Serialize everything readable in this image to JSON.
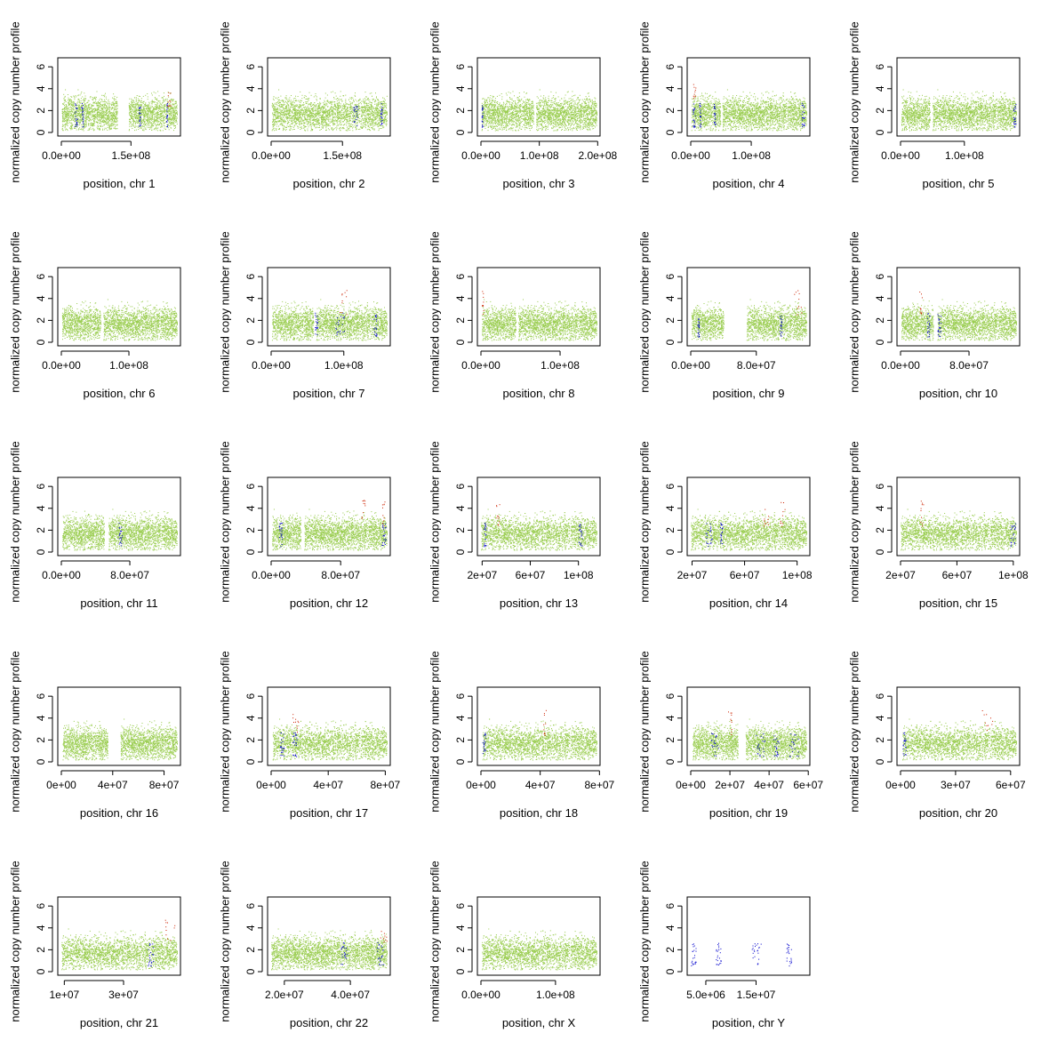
{
  "ylabel": "normalized copy number profile",
  "y_ticks": [
    0,
    2,
    4,
    6
  ],
  "ylim": [
    0,
    6.5
  ],
  "colors": {
    "normal": "#9acd50",
    "loss": "#0000cd",
    "gain": "#cc2200"
  },
  "chart_data": [
    {
      "type": "scatter",
      "chr": "1",
      "xlabel": "position, chr 1",
      "xlim": [
        0,
        249000000
      ],
      "x_ticks": [
        0,
        150000000
      ],
      "x_tick_labels": [
        "0.0e+00",
        "1.5e+08"
      ],
      "segments": [
        [
          1000000,
          120000000
        ],
        [
          145000000,
          249000000
        ]
      ],
      "loss_regions": [
        [
          28000000,
          34000000
        ],
        [
          43000000,
          47000000
        ],
        [
          167000000,
          170000000
        ],
        [
          226000000,
          228000000
        ]
      ],
      "gain_regions": [
        [
          228000000,
          236000000
        ]
      ]
    },
    {
      "type": "scatter",
      "chr": "2",
      "xlabel": "position, chr 2",
      "xlim": [
        0,
        243000000
      ],
      "x_ticks": [
        0,
        150000000
      ],
      "x_tick_labels": [
        "0.0e+00",
        "1.5e+08"
      ],
      "segments": [
        [
          1000000,
          243000000
        ]
      ],
      "loss_regions": [
        [
          172000000,
          182000000
        ],
        [
          230000000,
          233000000
        ]
      ],
      "gain_regions": []
    },
    {
      "type": "scatter",
      "chr": "3",
      "xlabel": "position, chr 3",
      "xlim": [
        0,
        198000000
      ],
      "x_ticks": [
        0,
        100000000,
        200000000
      ],
      "x_tick_labels": [
        "0.0e+00",
        "1.0e+08",
        "2.0e+08"
      ],
      "segments": [
        [
          1000000,
          90000000
        ],
        [
          94000000,
          198000000
        ]
      ],
      "loss_regions": [
        [
          1000000,
          3000000
        ]
      ],
      "gain_regions": []
    },
    {
      "type": "scatter",
      "chr": "4",
      "xlabel": "position, chr 4",
      "xlim": [
        0,
        191000000
      ],
      "x_ticks": [
        0,
        100000000
      ],
      "x_tick_labels": [
        "0.0e+00",
        "1.0e+08"
      ],
      "segments": [
        [
          1000000,
          49000000
        ],
        [
          52000000,
          191000000
        ]
      ],
      "loss_regions": [
        [
          3000000,
          7000000
        ],
        [
          14000000,
          16000000
        ],
        [
          38000000,
          41000000
        ],
        [
          183000000,
          188000000
        ]
      ],
      "gain_regions": [
        [
          3000000,
          8000000
        ]
      ]
    },
    {
      "type": "scatter",
      "chr": "5",
      "xlabel": "position, chr 5",
      "xlim": [
        0,
        181000000
      ],
      "x_ticks": [
        0,
        100000000
      ],
      "x_tick_labels": [
        "0.0e+00",
        "1.0e+08"
      ],
      "segments": [
        [
          1000000,
          46000000
        ],
        [
          50000000,
          181000000
        ]
      ],
      "loss_regions": [
        [
          176000000,
          181000000
        ]
      ],
      "gain_regions": []
    },
    {
      "type": "scatter",
      "chr": "6",
      "xlabel": "position, chr 6",
      "xlim": [
        0,
        171000000
      ],
      "x_ticks": [
        0,
        100000000
      ],
      "x_tick_labels": [
        "0.0e+00",
        "1.0e+08"
      ],
      "segments": [
        [
          1000000,
          58000000
        ],
        [
          62000000,
          171000000
        ]
      ],
      "loss_regions": [],
      "gain_regions": []
    },
    {
      "type": "scatter",
      "chr": "7",
      "xlabel": "position, chr 7",
      "xlim": [
        0,
        159000000
      ],
      "x_ticks": [
        0,
        100000000
      ],
      "x_tick_labels": [
        "0.0e+00",
        "1.0e+08"
      ],
      "segments": [
        [
          1000000,
          58000000
        ],
        [
          62000000,
          159000000
        ]
      ],
      "loss_regions": [
        [
          60000000,
          64000000
        ],
        [
          88000000,
          101000000
        ],
        [
          141000000,
          145000000
        ]
      ],
      "gain_regions": [
        [
          94000000,
          104000000
        ]
      ]
    },
    {
      "type": "scatter",
      "chr": "8",
      "xlabel": "position, chr 8",
      "xlim": [
        0,
        146000000
      ],
      "x_ticks": [
        0,
        100000000
      ],
      "x_tick_labels": [
        "0.0e+00",
        "1.0e+08"
      ],
      "segments": [
        [
          1000000,
          44000000
        ],
        [
          47000000,
          146000000
        ]
      ],
      "loss_regions": [],
      "gain_regions": [
        [
          1000000,
          3000000
        ]
      ]
    },
    {
      "type": "scatter",
      "chr": "9",
      "xlabel": "position, chr 9",
      "xlim": [
        0,
        141000000
      ],
      "x_ticks": [
        0,
        80000000
      ],
      "x_tick_labels": [
        "0.0e+00",
        "8.0e+07"
      ],
      "segments": [
        [
          1000000,
          40000000
        ],
        [
          68000000,
          141000000
        ]
      ],
      "loss_regions": [
        [
          8000000,
          10000000
        ],
        [
          108000000,
          111000000
        ]
      ],
      "gain_regions": [
        [
          125000000,
          136000000
        ]
      ]
    },
    {
      "type": "scatter",
      "chr": "10",
      "xlabel": "position, chr 10",
      "xlim": [
        0,
        135000000
      ],
      "x_ticks": [
        0,
        80000000
      ],
      "x_tick_labels": [
        "0.0e+00",
        "8.0e+07"
      ],
      "segments": [
        [
          1000000,
          38000000
        ],
        [
          43000000,
          135000000
        ]
      ],
      "loss_regions": [
        [
          31000000,
          34000000
        ],
        [
          43000000,
          47000000
        ]
      ],
      "gain_regions": [
        [
          22000000,
          25000000
        ]
      ]
    },
    {
      "type": "scatter",
      "chr": "11",
      "xlabel": "position, chr 11",
      "xlim": [
        0,
        135000000
      ],
      "x_ticks": [
        0,
        80000000
      ],
      "x_tick_labels": [
        "0.0e+00",
        "8.0e+07"
      ],
      "segments": [
        [
          1000000,
          50000000
        ],
        [
          55000000,
          135000000
        ]
      ],
      "loss_regions": [
        [
          67000000,
          71000000
        ]
      ],
      "gain_regions": []
    },
    {
      "type": "scatter",
      "chr": "12",
      "xlabel": "position, chr 12",
      "xlim": [
        0,
        133000000
      ],
      "x_ticks": [
        0,
        80000000
      ],
      "x_tick_labels": [
        "0.0e+00",
        "8.0e+07"
      ],
      "segments": [
        [
          1000000,
          34000000
        ],
        [
          38000000,
          133000000
        ]
      ],
      "loss_regions": [
        [
          9000000,
          13000000
        ],
        [
          127000000,
          132000000
        ]
      ],
      "gain_regions": [
        [
          104000000,
          108000000
        ],
        [
          127000000,
          131000000
        ]
      ]
    },
    {
      "type": "scatter",
      "chr": "13",
      "xlabel": "position, chr 13",
      "xlim": [
        19000000,
        115000000
      ],
      "x_ticks": [
        20000000,
        60000000,
        100000000
      ],
      "x_tick_labels": [
        "2e+07",
        "6e+07",
        "1e+08"
      ],
      "segments": [
        [
          19000000,
          115000000
        ]
      ],
      "loss_regions": [
        [
          21000000,
          23000000
        ],
        [
          100000000,
          103000000
        ]
      ],
      "gain_regions": [
        [
          31000000,
          35000000
        ]
      ]
    },
    {
      "type": "scatter",
      "chr": "14",
      "xlabel": "position, chr 14",
      "xlim": [
        19000000,
        107000000
      ],
      "x_ticks": [
        20000000,
        60000000,
        100000000
      ],
      "x_tick_labels": [
        "2e+07",
        "6e+07",
        "1e+08"
      ],
      "segments": [
        [
          19000000,
          107000000
        ]
      ],
      "loss_regions": [
        [
          30000000,
          35000000
        ],
        [
          41000000,
          43000000
        ]
      ],
      "gain_regions": [
        [
          74000000,
          78000000
        ],
        [
          87000000,
          91000000
        ]
      ]
    },
    {
      "type": "scatter",
      "chr": "15",
      "xlabel": "position, chr 15",
      "xlim": [
        20000000,
        102000000
      ],
      "x_ticks": [
        20000000,
        60000000,
        100000000
      ],
      "x_tick_labels": [
        "2e+07",
        "6e+07",
        "1e+08"
      ],
      "segments": [
        [
          20000000,
          102000000
        ]
      ],
      "loss_regions": [
        [
          98000000,
          102000000
        ]
      ],
      "gain_regions": [
        [
          34000000,
          36000000
        ]
      ]
    },
    {
      "type": "scatter",
      "chr": "16",
      "xlabel": "position, chr 16",
      "xlim": [
        0,
        90000000
      ],
      "x_ticks": [
        0,
        40000000,
        80000000
      ],
      "x_tick_labels": [
        "0e+00",
        "4e+07",
        "8e+07"
      ],
      "segments": [
        [
          1000000,
          36000000
        ],
        [
          46000000,
          90000000
        ]
      ],
      "loss_regions": [],
      "gain_regions": []
    },
    {
      "type": "scatter",
      "chr": "17",
      "xlabel": "position, chr 17",
      "xlim": [
        0,
        81000000
      ],
      "x_ticks": [
        0,
        40000000,
        80000000
      ],
      "x_tick_labels": [
        "0e+00",
        "4e+07",
        "8e+07"
      ],
      "segments": [
        [
          1000000,
          81000000
        ]
      ],
      "loss_regions": [
        [
          6000000,
          9000000
        ],
        [
          15000000,
          18000000
        ]
      ],
      "gain_regions": [
        [
          15000000,
          19000000
        ]
      ]
    },
    {
      "type": "scatter",
      "chr": "18",
      "xlabel": "position, chr 18",
      "xlim": [
        0,
        78000000
      ],
      "x_ticks": [
        0,
        40000000,
        80000000
      ],
      "x_tick_labels": [
        "0e+00",
        "4e+07",
        "8e+07"
      ],
      "segments": [
        [
          1000000,
          78000000
        ]
      ],
      "loss_regions": [
        [
          1000000,
          3000000
        ]
      ],
      "gain_regions": [
        [
          42000000,
          44000000
        ]
      ]
    },
    {
      "type": "scatter",
      "chr": "19",
      "xlabel": "position, chr 19",
      "xlim": [
        0,
        59000000
      ],
      "x_ticks": [
        0,
        20000000,
        40000000,
        60000000
      ],
      "x_tick_labels": [
        "0e+00",
        "2e+07",
        "4e+07",
        "6e+07"
      ],
      "segments": [
        [
          1000000,
          24000000
        ],
        [
          28000000,
          59000000
        ]
      ],
      "loss_regions": [
        [
          10000000,
          14000000
        ],
        [
          33000000,
          38000000
        ],
        [
          42000000,
          45000000
        ],
        [
          50000000,
          55000000
        ]
      ],
      "gain_regions": [
        [
          19000000,
          21000000
        ]
      ]
    },
    {
      "type": "scatter",
      "chr": "20",
      "xlabel": "position, chr 20",
      "xlim": [
        0,
        63000000
      ],
      "x_ticks": [
        0,
        30000000,
        60000000
      ],
      "x_tick_labels": [
        "0e+00",
        "3e+07",
        "6e+07"
      ],
      "segments": [
        [
          1000000,
          63000000
        ]
      ],
      "loss_regions": [
        [
          1000000,
          3000000
        ]
      ],
      "gain_regions": [
        [
          44000000,
          50000000
        ]
      ]
    },
    {
      "type": "scatter",
      "chr": "21",
      "xlabel": "position, chr 21",
      "xlim": [
        9000000,
        48000000
      ],
      "x_ticks": [
        10000000,
        30000000
      ],
      "x_tick_labels": [
        "1e+07",
        "3e+07"
      ],
      "segments": [
        [
          9000000,
          48000000
        ]
      ],
      "loss_regions": [
        [
          38000000,
          40000000
        ]
      ],
      "gain_regions": [
        [
          44000000,
          48000000
        ]
      ]
    },
    {
      "type": "scatter",
      "chr": "22",
      "xlabel": "position, chr 22",
      "xlim": [
        16000000,
        51000000
      ],
      "x_ticks": [
        20000000,
        40000000
      ],
      "x_tick_labels": [
        "2.0e+07",
        "4.0e+07"
      ],
      "segments": [
        [
          16000000,
          51000000
        ]
      ],
      "loss_regions": [
        [
          37000000,
          39000000
        ],
        [
          48000000,
          50000000
        ]
      ],
      "gain_regions": [
        [
          49000000,
          51000000
        ]
      ]
    },
    {
      "type": "scatter",
      "chr": "X",
      "xlabel": "position, chr X",
      "xlim": [
        0,
        155000000
      ],
      "x_ticks": [
        0,
        100000000
      ],
      "x_tick_labels": [
        "0.0e+00",
        "1.0e+08"
      ],
      "segments": [
        [
          1000000,
          155000000
        ]
      ],
      "loss_regions": [],
      "gain_regions": []
    },
    {
      "type": "scatter",
      "chr": "Y",
      "xlabel": "position, chr Y",
      "xlim": [
        2000000,
        25000000
      ],
      "x_ticks": [
        5000000,
        15000000
      ],
      "x_tick_labels": [
        "5.0e+06",
        "1.5e+07"
      ],
      "segments": [],
      "loss_regions": [
        [
          2000000,
          3000000
        ],
        [
          7000000,
          8000000
        ],
        [
          14000000,
          16000000
        ],
        [
          21000000,
          22000000
        ]
      ],
      "gain_regions": []
    }
  ]
}
